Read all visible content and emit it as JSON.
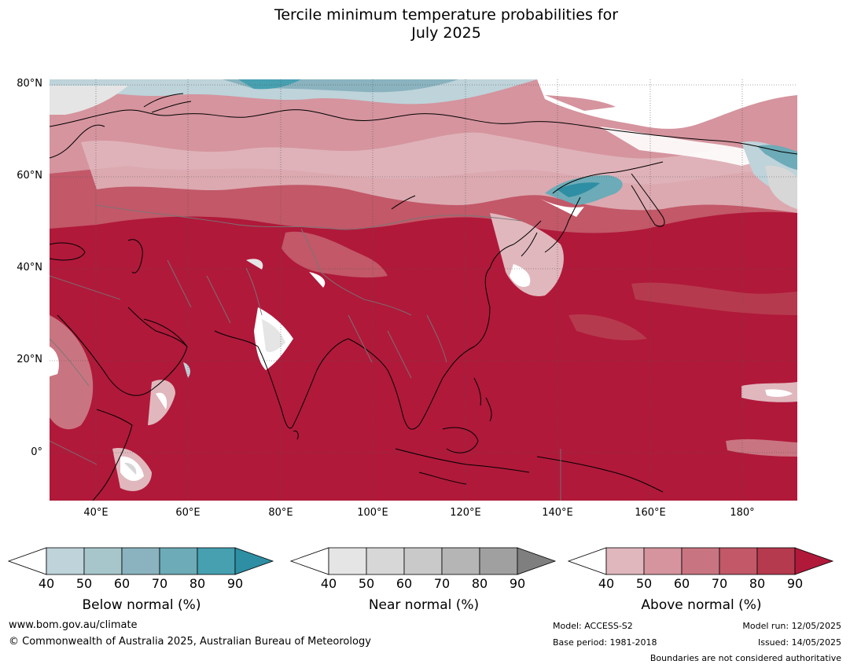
{
  "title_line1": "Tercile minimum temperature probabilities for",
  "title_line2": "July 2025",
  "lat_labels": [
    "80°N",
    "60°N",
    "40°N",
    "20°N",
    "0°"
  ],
  "lon_labels": [
    "40°E",
    "60°E",
    "80°E",
    "100°E",
    "120°E",
    "140°E",
    "160°E",
    "180°"
  ],
  "colorbars": [
    {
      "name": "below",
      "label": "Below normal (%)",
      "ticks": [
        "40",
        "50",
        "60",
        "70",
        "80",
        "90"
      ],
      "colors": [
        "#ffffff",
        "#bed3da",
        "#a7c6cc",
        "#8ab3bf",
        "#6cabb7",
        "#46a0b0",
        "#2e8ea3"
      ]
    },
    {
      "name": "near",
      "label": "Near normal (%)",
      "ticks": [
        "40",
        "50",
        "60",
        "70",
        "80",
        "90"
      ],
      "colors": [
        "#ffffff",
        "#e5e5e5",
        "#d7d7d7",
        "#c9c9c9",
        "#b5b5b5",
        "#a0a0a0",
        "#7f7f7f"
      ]
    },
    {
      "name": "above",
      "label": "Above normal (%)",
      "ticks": [
        "40",
        "50",
        "60",
        "70",
        "80",
        "90"
      ],
      "colors": [
        "#ffffff",
        "#e0b7bd",
        "#d5949e",
        "#c97581",
        "#c25868",
        "#b63a4e",
        "#b0193a"
      ]
    }
  ],
  "footer": {
    "website": "www.bom.gov.au/climate",
    "copyright": "© Commonwealth of Australia 2025, Australian Bureau of Meteorology",
    "model": "Model: ACCESS-S2",
    "base_period": "Base period: 1981-2018",
    "model_run": "Model run: 12/05/2025",
    "issued": "Issued: 14/05/2025",
    "disclaimer": "Boundaries are not considered authoritative"
  }
}
